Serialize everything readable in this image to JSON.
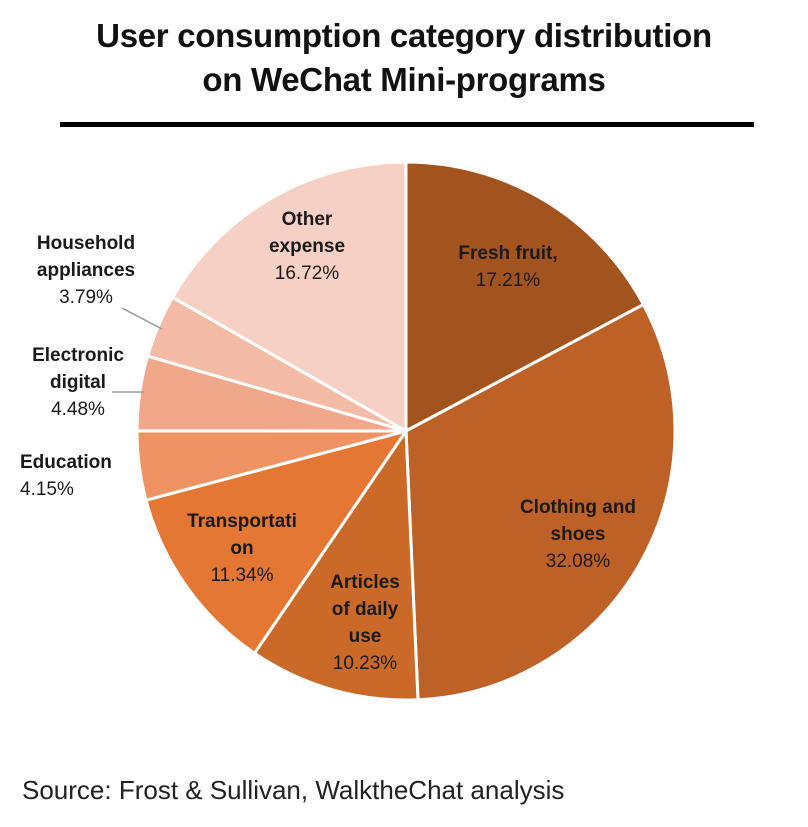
{
  "chart": {
    "title_line1": "User consumption category distribution",
    "title_line2": "on WeChat Mini-programs",
    "source": "Source: Frost & Sullivan, WalktheChat analysis"
  },
  "chart_data": {
    "type": "pie",
    "title": "User consumption category distribution on WeChat Mini-programs",
    "slices": [
      {
        "label": "Fresh fruit,",
        "value": 17.21,
        "pct": "17.21%",
        "color": "#A3541E"
      },
      {
        "label": "Clothing and shoes",
        "value": 32.08,
        "pct": "32.08%",
        "color": "#BD6127"
      },
      {
        "label": "Articles of daily use",
        "value": 10.23,
        "pct": "10.23%",
        "color": "#CB6A28"
      },
      {
        "label": "Transportation",
        "value": 11.34,
        "pct": "11.34%",
        "color": "#E47733"
      },
      {
        "label": "Education",
        "value": 4.15,
        "pct": "4.15%",
        "color": "#EE9464"
      },
      {
        "label": "Electronic digital",
        "value": 4.48,
        "pct": "4.48%",
        "color": "#F0A78A"
      },
      {
        "label": "Household appliances",
        "value": 3.79,
        "pct": "3.79%",
        "color": "#F4BBA7"
      },
      {
        "label": "Other expense",
        "value": 16.72,
        "pct": "16.72%",
        "color": "#F6D0C5"
      }
    ]
  }
}
